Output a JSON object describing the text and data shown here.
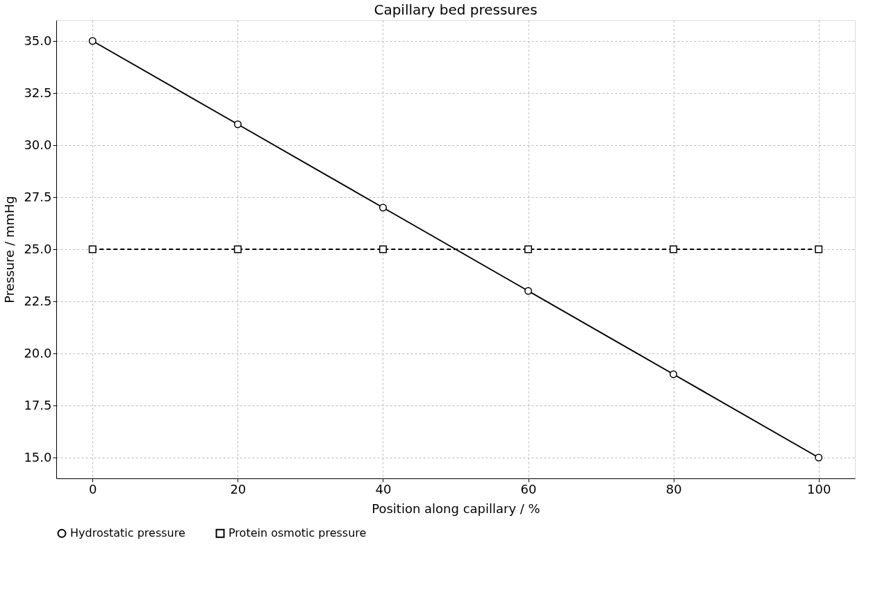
{
  "chart_data": {
    "type": "line",
    "title": "Capillary bed pressures",
    "xlabel": "Position along capillary / %",
    "ylabel": "Pressure / mmHg",
    "x": [
      0,
      20,
      40,
      60,
      80,
      100
    ],
    "series": [
      {
        "name": "Hydrostatic pressure",
        "color": "#000000",
        "values": [
          35,
          31,
          27,
          23,
          19,
          15
        ],
        "marker": "circle",
        "line_style": "solid"
      },
      {
        "name": "Protein osmotic pressure",
        "color": "#000000",
        "values": [
          25,
          25,
          25,
          25,
          25,
          25
        ],
        "marker": "square",
        "line_style": "dashed"
      }
    ],
    "xlim": [
      -5,
      105
    ],
    "xticks": [
      0,
      20,
      40,
      60,
      80,
      100
    ],
    "ylim": [
      14,
      36
    ],
    "yticks": [
      {
        "value": 15,
        "label": "15.0"
      },
      {
        "value": 17.5,
        "label": "17.5"
      },
      {
        "value": 20,
        "label": "20.0"
      },
      {
        "value": 22.5,
        "label": "22.5"
      },
      {
        "value": 25,
        "label": "25.0"
      },
      {
        "value": 27.5,
        "label": "27.5"
      },
      {
        "value": 30,
        "label": "30.0"
      },
      {
        "value": 32.5,
        "label": "32.5"
      },
      {
        "value": 35,
        "label": "35.0"
      }
    ],
    "grid": true,
    "legend": "bottom"
  }
}
